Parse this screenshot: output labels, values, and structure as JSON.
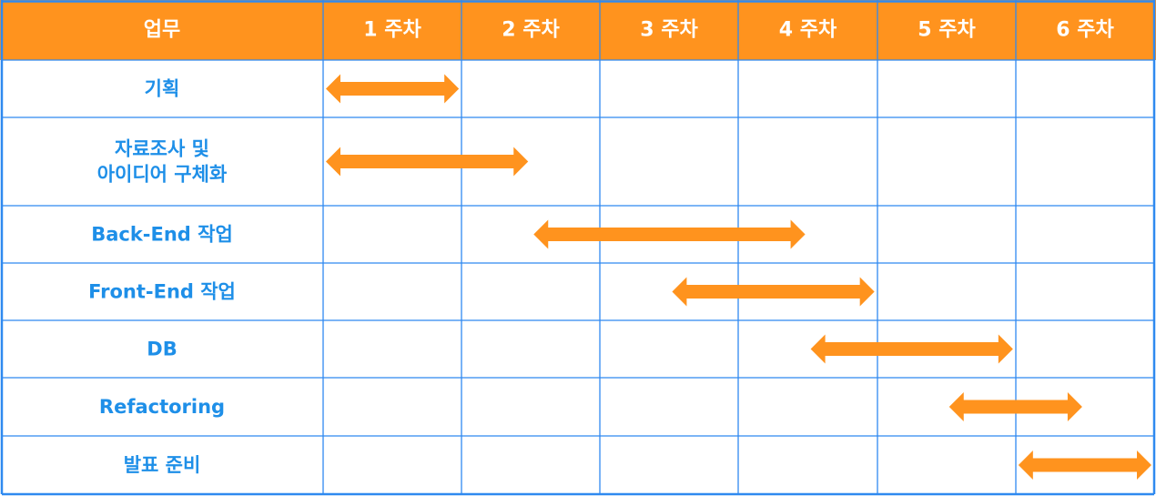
{
  "colors": {
    "header_bg": "#ff931e",
    "grid_line": "#2f89f0",
    "task_label": "#1e8fe8",
    "header_text": "#ffffff",
    "arrow": "#ff931e"
  },
  "chart_data": {
    "type": "gantt",
    "task_column_label": "업무",
    "weeks": [
      "1 주차",
      "2 주차",
      "3 주차",
      "4 주차",
      "5 주차",
      "6 주차"
    ],
    "tasks": [
      {
        "name": "기획",
        "lines": [
          "기획"
        ],
        "start_week": 1.0,
        "end_week": 2.0
      },
      {
        "name": "자료조사 및 아이디어 구체화",
        "lines": [
          "자료조사 및",
          "아이디어 구체화"
        ],
        "start_week": 1.0,
        "end_week": 2.5
      },
      {
        "name": "Back-End 작업",
        "lines": [
          "Back-End 작업"
        ],
        "start_week": 2.5,
        "end_week": 4.5
      },
      {
        "name": "Front-End 작업",
        "lines": [
          "Front-End 작업"
        ],
        "start_week": 3.5,
        "end_week": 5.0
      },
      {
        "name": "DB",
        "lines": [
          "DB"
        ],
        "start_week": 4.5,
        "end_week": 6.0
      },
      {
        "name": "Refactoring",
        "lines": [
          "Refactoring"
        ],
        "start_week": 5.5,
        "end_week": 6.5
      },
      {
        "name": "발표 준비",
        "lines": [
          "발표 준비"
        ],
        "start_week": 6.0,
        "end_week": 7.0
      }
    ]
  }
}
